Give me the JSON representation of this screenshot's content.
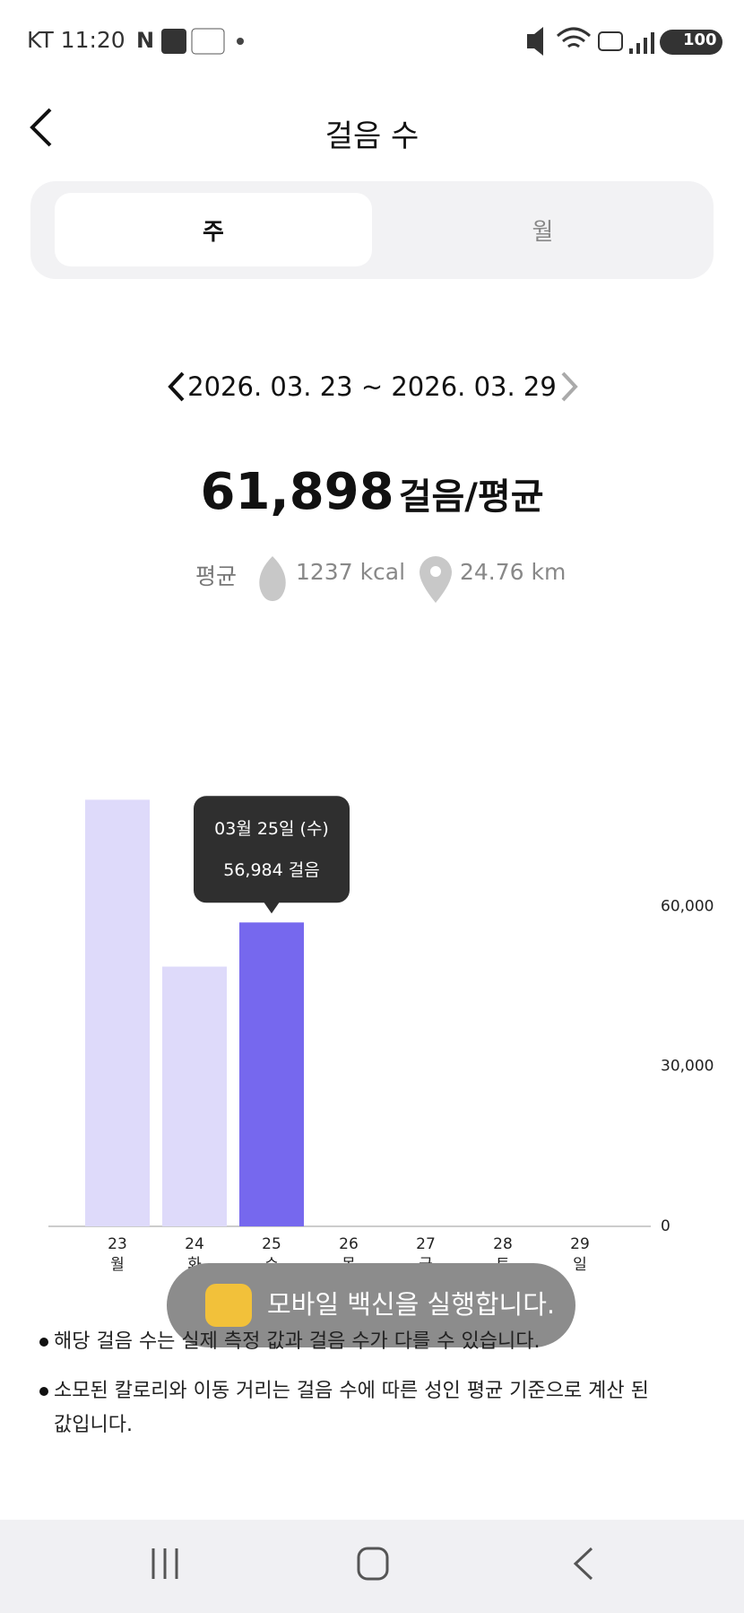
{
  "status_bar": {
    "carrier_time": "KT 11:20",
    "battery": "100"
  },
  "header": {
    "title": "걸음 수"
  },
  "tabs": [
    "주",
    "월"
  ],
  "date_range": "2026. 03. 23 ~ 2026. 03. 29",
  "summary": {
    "steps": "61,898",
    "unit": "걸음/평균",
    "label": "평균",
    "calories": "1237 kcal",
    "distance": "24.76 km"
  },
  "chart_data": {
    "type": "bar",
    "categories": [
      "23",
      "24",
      "25",
      "26",
      "27",
      "28",
      "29"
    ],
    "weekdays": [
      "월",
      "화",
      "수",
      "목",
      "금",
      "토",
      "일"
    ],
    "values": [
      80000,
      48700,
      56984,
      null,
      null,
      null,
      null
    ],
    "value_labels": [
      null,
      null,
      "56,984 걸음",
      null,
      null,
      null,
      null
    ],
    "tooltip_title": "03월 25일 (수)",
    "colors": [
      "#dedafa",
      "#dedafa",
      "#7668ee",
      "#dedafa",
      "#dedafa",
      "#dedafa",
      "#dedafa"
    ],
    "ylim": [
      0,
      90000
    ],
    "yticks": [
      0,
      {
        "value": 30000,
        "label": "30,000"
      },
      {
        "value": 60000,
        "label": "60,000"
      }
    ],
    "grid": false
  },
  "notes": [
    "해당 걸음 수는 실제 측정 값과 걸음 수가 다를 수 있습니다.",
    "소모된 칼로리와 이동 거리는 걸음 수에 따른 성인 평균 기준으로 계산 된 값입니다."
  ],
  "toast": "모바일 백신을 실행합니다."
}
